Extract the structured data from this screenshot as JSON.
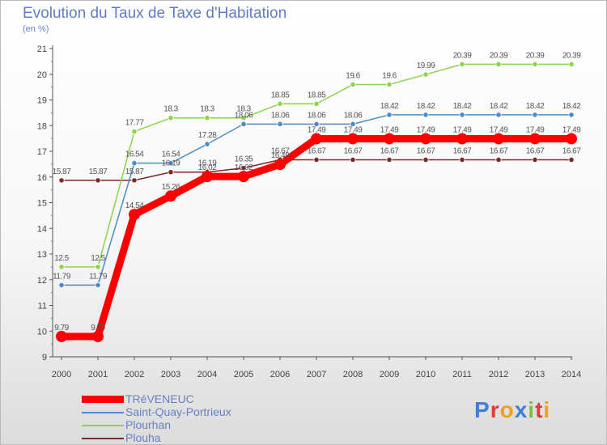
{
  "chart_data": {
    "type": "line",
    "title": "Evolution du Taux de Taxe d'Habitation",
    "unit_label": "(en %)",
    "x": [
      "2000",
      "2001",
      "2002",
      "2003",
      "2004",
      "2005",
      "2006",
      "2007",
      "2008",
      "2009",
      "2010",
      "2011",
      "2012",
      "2013",
      "2014"
    ],
    "ylim": [
      9,
      21
    ],
    "yticks": [
      "9",
      "10",
      "11",
      "12",
      "13",
      "14",
      "15",
      "16",
      "17",
      "18",
      "19",
      "20",
      "21"
    ],
    "grid": false,
    "legend_position": "bottom-left",
    "series": [
      {
        "name": "TRéVENEUC",
        "color": "#ff0000",
        "values": [
          9.79,
          9.79,
          14.54,
          15.26,
          16.02,
          16.02,
          16.49,
          17.49,
          17.49,
          17.49,
          17.49,
          17.49,
          17.49,
          17.49,
          17.49
        ],
        "labels": [
          "9.79",
          "9.79",
          "14.54",
          "15.26",
          "16.02",
          "16.02",
          "16.49",
          "17.49",
          "17.49",
          "17.49",
          "17.49",
          "17.49",
          "17.49",
          "17.49",
          "17.49"
        ]
      },
      {
        "name": "Saint-Quay-Portrieux",
        "color": "#4a8ccb",
        "values": [
          11.79,
          11.79,
          16.54,
          16.54,
          17.28,
          18.06,
          18.06,
          18.06,
          18.06,
          18.42,
          18.42,
          18.42,
          18.42,
          18.42,
          18.42
        ],
        "labels": [
          "11.79",
          "11.79",
          "16.54",
          "16.54",
          "17.28",
          "18.06",
          "18.06",
          "18.06",
          "18.06",
          "18.42",
          "18.42",
          "18.42",
          "18.42",
          "18.42",
          "18.42"
        ]
      },
      {
        "name": "Plourhan",
        "color": "#8cd44c",
        "values": [
          12.5,
          12.5,
          17.77,
          18.3,
          18.3,
          18.3,
          18.85,
          18.85,
          19.6,
          19.6,
          19.99,
          20.39,
          20.39,
          20.39,
          20.39
        ],
        "labels": [
          "12.5",
          "12.5",
          "17.77",
          "18.3",
          "18.3",
          "18.3",
          "18.85",
          "18.85",
          "19.6",
          "19.6",
          "19.99",
          "20.39",
          "20.39",
          "20.39",
          "20.39"
        ]
      },
      {
        "name": "Plouha",
        "color": "#7a2a2a",
        "values": [
          15.87,
          15.87,
          15.87,
          16.19,
          16.19,
          16.35,
          16.67,
          16.67,
          16.67,
          16.67,
          16.67,
          16.67,
          16.67,
          16.67,
          16.67
        ],
        "labels": [
          "15.87",
          "15.87",
          "15.87",
          "16.19",
          "16.19",
          "16.35",
          "16.67",
          "16.67",
          "16.67",
          "16.67",
          "16.67",
          "16.67",
          "16.67",
          "16.67",
          "16.67"
        ]
      }
    ]
  },
  "brand": {
    "letters": [
      "P",
      "r",
      "o",
      "x",
      "i",
      "t",
      "i"
    ],
    "colors": [
      "#3f7fd6",
      "#e03a3a",
      "#f2a21a",
      "#3f7fd6",
      "#7ac143",
      "#e03a3a",
      "#f2a21a"
    ]
  }
}
